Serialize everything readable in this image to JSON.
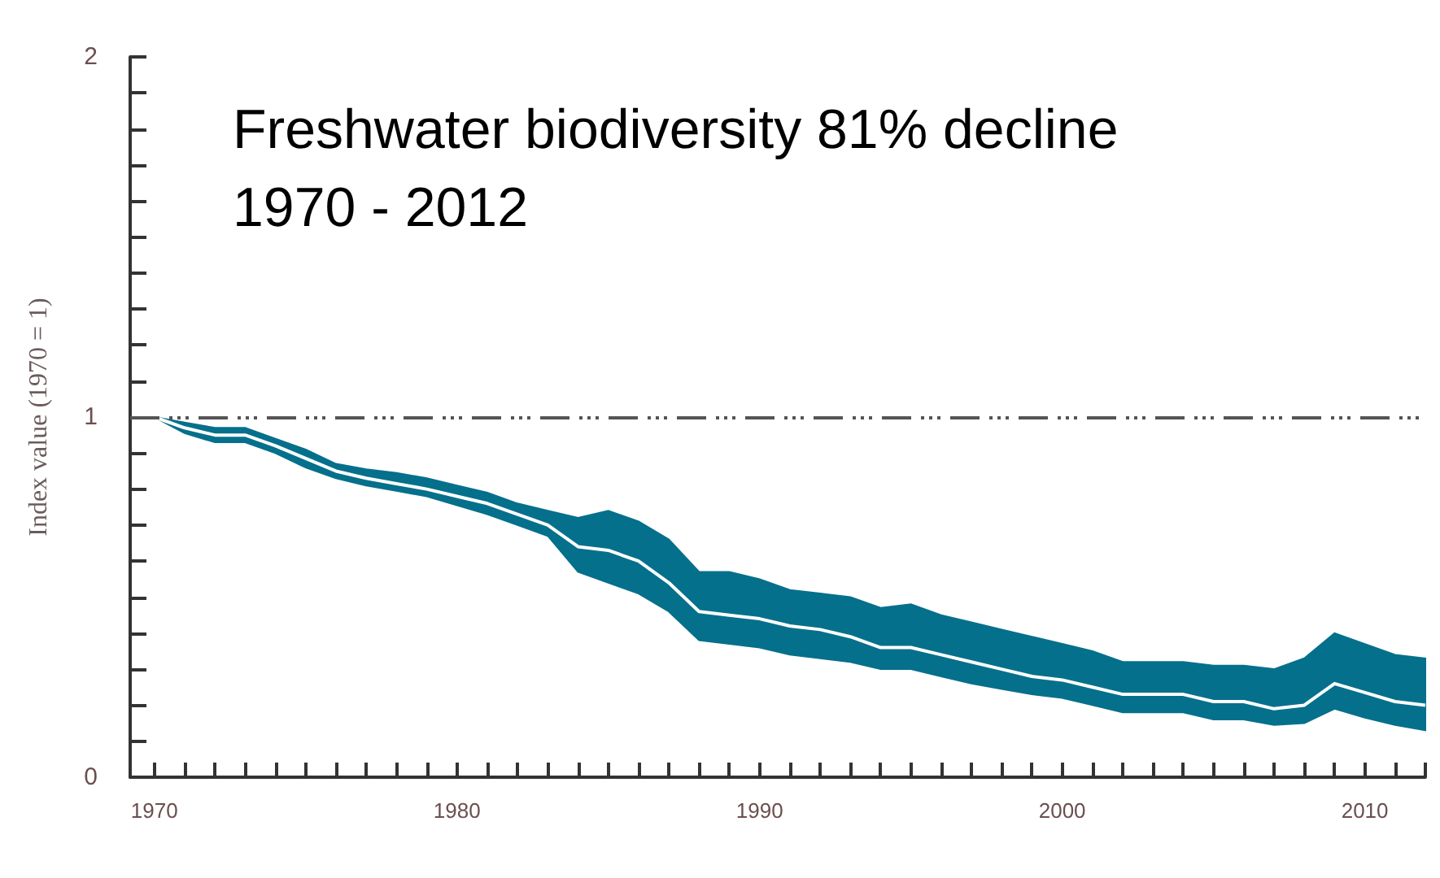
{
  "chart_data": {
    "type": "line",
    "ylabel": "Index value (1970 = 1)",
    "annotations": [
      "Freshwater biodiversity 81% decline\n1970 - 2012"
    ],
    "x": [
      1970,
      1971,
      1972,
      1973,
      1974,
      1975,
      1976,
      1977,
      1978,
      1979,
      1980,
      1981,
      1982,
      1983,
      1984,
      1985,
      1986,
      1987,
      1988,
      1989,
      1990,
      1991,
      1992,
      1993,
      1994,
      1995,
      1996,
      1997,
      1998,
      1999,
      2000,
      2001,
      2002,
      2003,
      2004,
      2005,
      2006,
      2007,
      2008,
      2009,
      2010,
      2011,
      2012
    ],
    "series": [
      {
        "color": "#ffffff",
        "values": [
          1.0,
          0.97,
          0.95,
          0.95,
          0.92,
          0.885,
          0.85,
          0.83,
          0.815,
          0.8,
          0.78,
          0.76,
          0.73,
          0.7,
          0.64,
          0.63,
          0.6,
          0.54,
          0.46,
          0.45,
          0.44,
          0.42,
          0.41,
          0.39,
          0.36,
          0.36,
          0.34,
          0.32,
          0.3,
          0.28,
          0.27,
          0.25,
          0.23,
          0.23,
          0.23,
          0.21,
          0.21,
          0.19,
          0.2,
          0.26,
          0.235,
          0.21,
          0.2
        ],
        "lower": [
          1.0,
          0.955,
          0.93,
          0.93,
          0.9,
          0.86,
          0.83,
          0.81,
          0.795,
          0.78,
          0.755,
          0.73,
          0.7,
          0.67,
          0.57,
          0.54,
          0.51,
          0.46,
          0.38,
          0.37,
          0.36,
          0.34,
          0.33,
          0.32,
          0.3,
          0.3,
          0.28,
          0.26,
          0.245,
          0.23,
          0.22,
          0.2,
          0.18,
          0.18,
          0.18,
          0.16,
          0.16,
          0.145,
          0.15,
          0.19,
          0.165,
          0.145,
          0.13
        ],
        "upper": [
          1.0,
          0.985,
          0.97,
          0.97,
          0.94,
          0.91,
          0.87,
          0.855,
          0.845,
          0.83,
          0.81,
          0.79,
          0.76,
          0.74,
          0.72,
          0.74,
          0.71,
          0.66,
          0.57,
          0.57,
          0.55,
          0.52,
          0.51,
          0.5,
          0.47,
          0.48,
          0.45,
          0.43,
          0.41,
          0.39,
          0.37,
          0.35,
          0.32,
          0.32,
          0.32,
          0.31,
          0.31,
          0.3,
          0.33,
          0.4,
          0.37,
          0.34,
          0.33
        ]
      }
    ],
    "xlim": [
      1969.2,
      2012
    ],
    "xticks": [
      1970,
      {
        "value": 1971,
        "label": null
      },
      {
        "value": 1972,
        "label": null
      },
      {
        "value": 1973,
        "label": null
      },
      {
        "value": 1974,
        "label": null
      },
      {
        "value": 1975,
        "label": null
      },
      {
        "value": 1976,
        "label": null
      },
      {
        "value": 1977,
        "label": null
      },
      {
        "value": 1978,
        "label": null
      },
      {
        "value": 1979,
        "label": null
      },
      1980,
      {
        "value": 1981,
        "label": null
      },
      {
        "value": 1982,
        "label": null
      },
      {
        "value": 1983,
        "label": null
      },
      {
        "value": 1984,
        "label": null
      },
      {
        "value": 1985,
        "label": null
      },
      {
        "value": 1986,
        "label": null
      },
      {
        "value": 1987,
        "label": null
      },
      {
        "value": 1988,
        "label": null
      },
      {
        "value": 1989,
        "label": null
      },
      1990,
      {
        "value": 1991,
        "label": null
      },
      {
        "value": 1992,
        "label": null
      },
      {
        "value": 1993,
        "label": null
      },
      {
        "value": 1994,
        "label": null
      },
      {
        "value": 1995,
        "label": null
      },
      {
        "value": 1996,
        "label": null
      },
      {
        "value": 1997,
        "label": null
      },
      {
        "value": 1998,
        "label": null
      },
      {
        "value": 1999,
        "label": null
      },
      2000,
      {
        "value": 2001,
        "label": null
      },
      {
        "value": 2002,
        "label": null
      },
      {
        "value": 2003,
        "label": null
      },
      {
        "value": 2004,
        "label": null
      },
      {
        "value": 2005,
        "label": null
      },
      {
        "value": 2006,
        "label": null
      },
      {
        "value": 2007,
        "label": null
      },
      {
        "value": 2008,
        "label": null
      },
      {
        "value": 2009,
        "label": null
      },
      2010,
      {
        "value": 2011,
        "label": null
      },
      {
        "value": 2012,
        "label": null
      }
    ],
    "ylim": [
      0,
      2
    ],
    "yticks": [
      0,
      {
        "value": 0.1,
        "label": null
      },
      {
        "value": 0.2,
        "label": null
      },
      {
        "value": 0.3,
        "label": null
      },
      {
        "value": 0.4,
        "label": null
      },
      {
        "value": 0.5,
        "label": null
      },
      {
        "value": 0.6,
        "label": null
      },
      {
        "value": 0.7,
        "label": null
      },
      {
        "value": 0.8,
        "label": null
      },
      {
        "value": 0.9,
        "label": null
      },
      1,
      {
        "value": 1.1,
        "label": null
      },
      {
        "value": 1.2,
        "label": null
      },
      {
        "value": 1.3,
        "label": null
      },
      {
        "value": 1.4,
        "label": null
      },
      {
        "value": 1.5,
        "label": null
      },
      {
        "value": 1.6,
        "label": null
      },
      {
        "value": 1.7,
        "label": null
      },
      {
        "value": 1.8,
        "label": null
      },
      {
        "value": 1.9,
        "label": null
      },
      2
    ],
    "ref_lines": [
      {
        "axis": "y",
        "value": 1,
        "color": "#555555",
        "line_style": "dashed"
      }
    ],
    "marker": "none"
  }
}
